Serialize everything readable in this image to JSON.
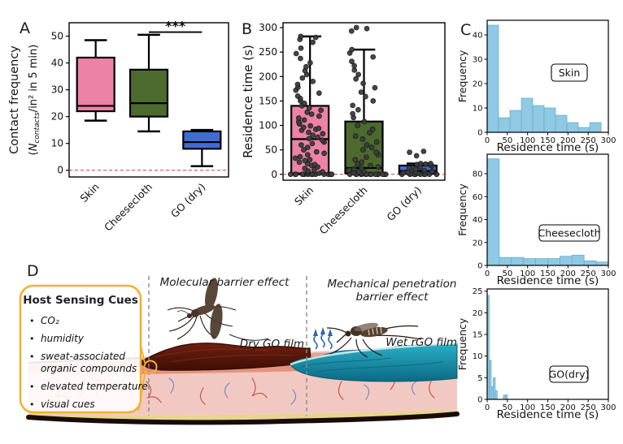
{
  "panels": {
    "a": "A",
    "b": "B",
    "c": "C",
    "d": "D"
  },
  "colors": {
    "skin_box": "#ec82a5",
    "cheesecloth_box": "#4c6a2d",
    "go_box": "#3f6cd3",
    "hist_fill": "#8fc9e3",
    "hist_edge": "#62abc9",
    "baseline_red": "#e03131",
    "scatter_dot": "#3d3d3d",
    "callout_border": "#f2b02c",
    "dry_film": "#5a150a",
    "wet_film": "#1286a0",
    "dashed_divider": "#8a8a8a"
  },
  "chart_data": [
    {
      "panel": "A",
      "type": "box",
      "ylabel_line1": "Contact frequency",
      "ylabel_line2": {
        "open": "(",
        "n": "N",
        "sub": "contacts",
        "rest": "/in² in 5 min)"
      },
      "categories": [
        "Skin",
        "Cheesecloth",
        "GO (dry)"
      ],
      "box_colors": [
        "#ec82a5",
        "#4c6a2d",
        "#3f6cd3"
      ],
      "ylim": [
        -2.5,
        55
      ],
      "yticks": [
        0,
        10,
        20,
        30,
        40,
        50
      ],
      "baseline": 0,
      "stats": [
        {
          "whislo": 18.5,
          "q1": 22,
          "med": 24,
          "q3": 42,
          "whishi": 48.5
        },
        {
          "whislo": 14.5,
          "q1": 20,
          "med": 25,
          "q3": 37.5,
          "whishi": 50.5
        },
        {
          "whislo": 1.5,
          "q1": 8,
          "med": 10.5,
          "q3": 14.5,
          "whishi": 15
        }
      ],
      "significance": {
        "label": "***",
        "from": 1,
        "to": 2,
        "y": 51.5
      }
    },
    {
      "panel": "B",
      "type": "box-scatter",
      "ylabel": "Residence time (s)",
      "categories": [
        "Skin",
        "Cheesecloth",
        "GO (dry)"
      ],
      "box_colors": [
        "#ec82a5",
        "#4c6a2d",
        "#3f6cd3"
      ],
      "ylim": [
        -12,
        310
      ],
      "yticks": [
        0,
        50,
        100,
        150,
        200,
        250,
        300
      ],
      "baseline": 0,
      "stats": [
        {
          "whislo": 0,
          "q1": 2,
          "med": 72,
          "q3": 140,
          "whishi": 282
        },
        {
          "whislo": 0,
          "q1": 2,
          "med": 13,
          "q3": 108,
          "whishi": 255
        },
        {
          "whislo": 0,
          "q1": 1,
          "med": 7,
          "q3": 18,
          "whishi": 22
        }
      ],
      "points": [
        [
          0,
          0,
          0,
          0,
          0,
          0,
          0,
          0,
          0,
          0,
          0,
          0,
          0,
          2,
          3,
          5,
          7,
          9,
          12,
          15,
          18,
          20,
          22,
          25,
          28,
          30,
          33,
          36,
          40,
          43,
          46,
          50,
          55,
          60,
          63,
          66,
          70,
          73,
          76,
          80,
          83,
          86,
          90,
          92,
          94,
          96,
          99,
          103,
          107,
          111,
          115,
          119,
          123,
          127,
          131,
          136,
          140,
          145,
          150,
          155,
          160,
          166,
          172,
          178,
          184,
          190,
          197,
          204,
          212,
          220,
          228,
          237,
          247,
          258,
          270,
          276,
          280,
          282
        ],
        [
          0,
          0,
          0,
          0,
          0,
          0,
          0,
          0,
          0,
          0,
          0,
          0,
          0,
          0,
          0,
          2,
          3,
          5,
          7,
          9,
          11,
          13,
          15,
          18,
          21,
          25,
          30,
          35,
          40,
          45,
          50,
          55,
          60,
          66,
          72,
          78,
          85,
          92,
          100,
          108,
          116,
          124,
          132,
          141,
          150,
          159,
          168,
          177,
          186,
          195,
          204,
          213,
          222,
          231,
          240,
          248,
          255,
          293,
          298,
          300
        ],
        [
          0,
          0,
          0,
          0,
          0,
          0,
          0,
          0,
          0,
          0,
          1,
          2,
          3,
          4,
          5,
          6,
          8,
          9,
          11,
          13,
          15,
          17,
          19,
          20,
          21,
          22,
          22,
          38,
          45,
          47
        ]
      ]
    },
    {
      "panel": "C-skin",
      "type": "histogram",
      "badge": "Skin",
      "xlabel": "Residence time (s)",
      "ylabel": "Frequency",
      "bin_start": 0,
      "bin_width": 28.2,
      "frequencies": [
        44,
        6,
        9,
        14,
        11,
        10,
        7,
        4,
        2,
        4
      ],
      "xlim": [
        0,
        300
      ],
      "ylim": [
        0,
        46
      ],
      "xticks": [
        0,
        50,
        100,
        150,
        200,
        250,
        300
      ],
      "yticks": [
        0,
        10,
        20,
        30,
        40
      ]
    },
    {
      "panel": "C-cheesecloth",
      "type": "histogram",
      "badge": "Cheesecloth",
      "xlabel": "Residence time (s)",
      "ylabel": "Frequency",
      "bin_start": 0,
      "bin_width": 30,
      "frequencies": [
        93,
        7,
        7,
        6,
        6,
        6,
        8,
        9,
        4,
        3
      ],
      "xlim": [
        0,
        300
      ],
      "ylim": [
        0,
        97
      ],
      "xticks": [
        0,
        50,
        100,
        150,
        200,
        250,
        300
      ],
      "yticks": [
        0,
        20,
        40,
        60,
        80
      ]
    },
    {
      "panel": "C-go-dry",
      "type": "histogram",
      "badge": "GO(dry)",
      "xlabel": "Residence time (s)",
      "ylabel": "Frequency",
      "bin_start": 0,
      "bin_width": 5,
      "frequencies": [
        24,
        9,
        3,
        5,
        2,
        0,
        0,
        0,
        1,
        1
      ],
      "xlim": [
        0,
        300
      ],
      "ylim": [
        0,
        25.5
      ],
      "xticks": [
        0,
        50,
        100,
        150,
        200,
        250,
        300
      ],
      "yticks": [
        0,
        5,
        10,
        15,
        20,
        25
      ]
    }
  ],
  "panel_d": {
    "host_cues": {
      "title": "Host Sensing Cues",
      "items": [
        [
          "CO₂"
        ],
        [
          "humidity"
        ],
        [
          "sweat-associated",
          "organic compounds"
        ],
        [
          "elevated temperature"
        ],
        [
          "visual cues"
        ]
      ]
    },
    "captions": {
      "molecular": "Molecular barrier effect",
      "mechanical_line1": "Mechanical penetration",
      "mechanical_line2": "barrier effect",
      "dry_film": "Dry GO film",
      "wet_film": "Wet rGO film"
    }
  }
}
